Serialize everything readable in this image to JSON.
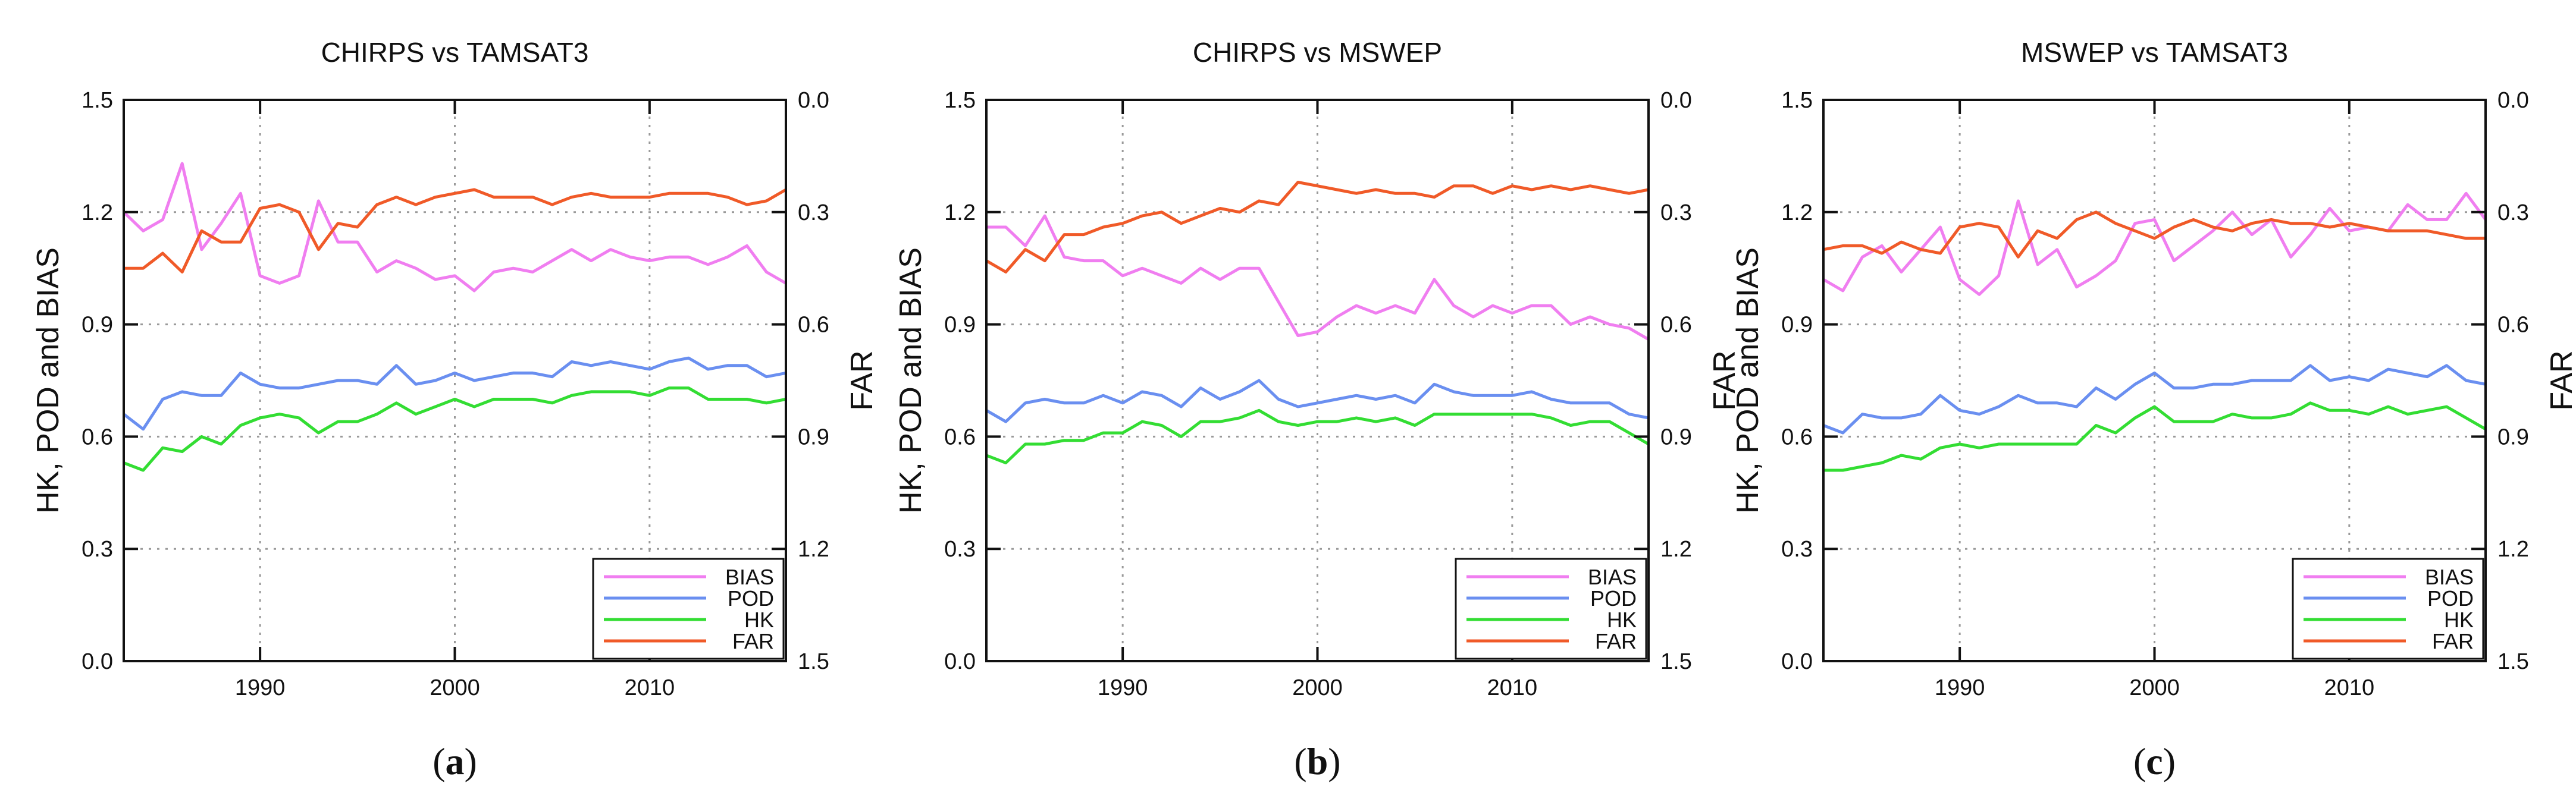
{
  "chart_data": [
    {
      "type": "line",
      "panel_label": "a",
      "title": "CHIRPS vs TAMSAT3",
      "ylabel": "HK, POD and BIAS",
      "y2label": "FAR",
      "xlim": [
        1983,
        2017
      ],
      "ylim": [
        0.0,
        1.5
      ],
      "y2lim": [
        1.5,
        0.0
      ],
      "xticks": [
        "1990",
        "2000",
        "2010"
      ],
      "yticks": [
        "0.0",
        "0.3",
        "0.6",
        "0.9",
        "1.2",
        "1.5"
      ],
      "y2ticks": [
        "1.5",
        "1.2",
        "0.9",
        "0.6",
        "0.3",
        "0.0"
      ],
      "x": [
        1983,
        1984,
        1985,
        1986,
        1987,
        1988,
        1989,
        1990,
        1991,
        1992,
        1993,
        1994,
        1995,
        1996,
        1997,
        1998,
        1999,
        2000,
        2001,
        2002,
        2003,
        2004,
        2005,
        2006,
        2007,
        2008,
        2009,
        2010,
        2011,
        2012,
        2013,
        2014,
        2015,
        2016,
        2017
      ],
      "series": [
        {
          "name": "BIAS",
          "axis": "left",
          "color": "#f07ef0",
          "values": [
            1.2,
            1.15,
            1.18,
            1.33,
            1.1,
            1.17,
            1.25,
            1.03,
            1.01,
            1.03,
            1.23,
            1.12,
            1.12,
            1.04,
            1.07,
            1.05,
            1.02,
            1.03,
            0.99,
            1.04,
            1.05,
            1.04,
            1.07,
            1.1,
            1.07,
            1.1,
            1.08,
            1.07,
            1.08,
            1.08,
            1.06,
            1.08,
            1.11,
            1.04,
            1.01
          ]
        },
        {
          "name": "POD",
          "axis": "left",
          "color": "#6a8ff0",
          "values": [
            0.66,
            0.62,
            0.7,
            0.72,
            0.71,
            0.71,
            0.77,
            0.74,
            0.73,
            0.73,
            0.74,
            0.75,
            0.75,
            0.74,
            0.79,
            0.74,
            0.75,
            0.77,
            0.75,
            0.76,
            0.77,
            0.77,
            0.76,
            0.8,
            0.79,
            0.8,
            0.79,
            0.78,
            0.8,
            0.81,
            0.78,
            0.79,
            0.79,
            0.76,
            0.77
          ]
        },
        {
          "name": "HK",
          "axis": "left",
          "color": "#33dd33",
          "values": [
            0.53,
            0.51,
            0.57,
            0.56,
            0.6,
            0.58,
            0.63,
            0.65,
            0.66,
            0.65,
            0.61,
            0.64,
            0.64,
            0.66,
            0.69,
            0.66,
            0.68,
            0.7,
            0.68,
            0.7,
            0.7,
            0.7,
            0.69,
            0.71,
            0.72,
            0.72,
            0.72,
            0.71,
            0.73,
            0.73,
            0.7,
            0.7,
            0.7,
            0.69,
            0.7
          ]
        },
        {
          "name": "FAR",
          "axis": "right",
          "color": "#f05a28",
          "values": [
            0.45,
            0.45,
            0.41,
            0.46,
            0.35,
            0.38,
            0.38,
            0.29,
            0.28,
            0.3,
            0.4,
            0.33,
            0.34,
            0.28,
            0.26,
            0.28,
            0.26,
            0.25,
            0.24,
            0.26,
            0.26,
            0.26,
            0.28,
            0.26,
            0.25,
            0.26,
            0.26,
            0.26,
            0.25,
            0.25,
            0.25,
            0.26,
            0.28,
            0.27,
            0.24
          ]
        }
      ],
      "legend": {
        "placement": "bottom-right",
        "entries": [
          "BIAS",
          "POD",
          "HK",
          "FAR"
        ]
      }
    },
    {
      "type": "line",
      "panel_label": "b",
      "title": "CHIRPS vs MSWEP",
      "ylabel": "HK, POD and BIAS",
      "y2label": "FAR",
      "xlim": [
        1983,
        2017
      ],
      "ylim": [
        0.0,
        1.5
      ],
      "y2lim": [
        1.5,
        0.0
      ],
      "xticks": [
        "1990",
        "2000",
        "2010"
      ],
      "yticks": [
        "0.0",
        "0.3",
        "0.6",
        "0.9",
        "1.2",
        "1.5"
      ],
      "y2ticks": [
        "1.5",
        "1.2",
        "0.9",
        "0.6",
        "0.3",
        "0.0"
      ],
      "x": [
        1983,
        1984,
        1985,
        1986,
        1987,
        1988,
        1989,
        1990,
        1991,
        1992,
        1993,
        1994,
        1995,
        1996,
        1997,
        1998,
        1999,
        2000,
        2001,
        2002,
        2003,
        2004,
        2005,
        2006,
        2007,
        2008,
        2009,
        2010,
        2011,
        2012,
        2013,
        2014,
        2015,
        2016,
        2017
      ],
      "series": [
        {
          "name": "BIAS",
          "axis": "left",
          "color": "#f07ef0",
          "values": [
            1.16,
            1.16,
            1.11,
            1.19,
            1.08,
            1.07,
            1.07,
            1.03,
            1.05,
            1.03,
            1.01,
            1.05,
            1.02,
            1.05,
            1.05,
            0.96,
            0.87,
            0.88,
            0.92,
            0.95,
            0.93,
            0.95,
            0.93,
            1.02,
            0.95,
            0.92,
            0.95,
            0.93,
            0.95,
            0.95,
            0.9,
            0.92,
            0.9,
            0.89,
            0.86
          ]
        },
        {
          "name": "POD",
          "axis": "left",
          "color": "#6a8ff0",
          "values": [
            0.67,
            0.64,
            0.69,
            0.7,
            0.69,
            0.69,
            0.71,
            0.69,
            0.72,
            0.71,
            0.68,
            0.73,
            0.7,
            0.72,
            0.75,
            0.7,
            0.68,
            0.69,
            0.7,
            0.71,
            0.7,
            0.71,
            0.69,
            0.74,
            0.72,
            0.71,
            0.71,
            0.71,
            0.72,
            0.7,
            0.69,
            0.69,
            0.69,
            0.66,
            0.65
          ]
        },
        {
          "name": "HK",
          "axis": "left",
          "color": "#33dd33",
          "values": [
            0.55,
            0.53,
            0.58,
            0.58,
            0.59,
            0.59,
            0.61,
            0.61,
            0.64,
            0.63,
            0.6,
            0.64,
            0.64,
            0.65,
            0.67,
            0.64,
            0.63,
            0.64,
            0.64,
            0.65,
            0.64,
            0.65,
            0.63,
            0.66,
            0.66,
            0.66,
            0.66,
            0.66,
            0.66,
            0.65,
            0.63,
            0.64,
            0.64,
            0.61,
            0.58
          ]
        },
        {
          "name": "FAR",
          "axis": "right",
          "color": "#f05a28",
          "values": [
            0.43,
            0.46,
            0.4,
            0.43,
            0.36,
            0.36,
            0.34,
            0.33,
            0.31,
            0.3,
            0.33,
            0.31,
            0.29,
            0.3,
            0.27,
            0.28,
            0.22,
            0.23,
            0.24,
            0.25,
            0.24,
            0.25,
            0.25,
            0.26,
            0.23,
            0.23,
            0.25,
            0.23,
            0.24,
            0.23,
            0.24,
            0.23,
            0.24,
            0.25,
            0.24
          ]
        }
      ],
      "legend": {
        "placement": "bottom-right",
        "entries": [
          "BIAS",
          "POD",
          "HK",
          "FAR"
        ]
      }
    },
    {
      "type": "line",
      "panel_label": "c",
      "title": "MSWEP vs TAMSAT3",
      "ylabel": "HK, POD and BIAS",
      "y2label": "FAR",
      "xlim": [
        1983,
        2017
      ],
      "ylim": [
        0.0,
        1.5
      ],
      "y2lim": [
        1.5,
        0.0
      ],
      "xticks": [
        "1990",
        "2000",
        "2010"
      ],
      "yticks": [
        "0.0",
        "0.3",
        "0.6",
        "0.9",
        "1.2",
        "1.5"
      ],
      "y2ticks": [
        "1.5",
        "1.2",
        "0.9",
        "0.6",
        "0.3",
        "0.0"
      ],
      "x": [
        1983,
        1984,
        1985,
        1986,
        1987,
        1988,
        1989,
        1990,
        1991,
        1992,
        1993,
        1994,
        1995,
        1996,
        1997,
        1998,
        1999,
        2000,
        2001,
        2002,
        2003,
        2004,
        2005,
        2006,
        2007,
        2008,
        2009,
        2010,
        2011,
        2012,
        2013,
        2014,
        2015,
        2016,
        2017
      ],
      "series": [
        {
          "name": "BIAS",
          "axis": "left",
          "color": "#f07ef0",
          "values": [
            1.02,
            0.99,
            1.08,
            1.11,
            1.04,
            1.1,
            1.16,
            1.02,
            0.98,
            1.03,
            1.23,
            1.06,
            1.1,
            1.0,
            1.03,
            1.07,
            1.17,
            1.18,
            1.07,
            1.11,
            1.15,
            1.2,
            1.14,
            1.18,
            1.08,
            1.14,
            1.21,
            1.15,
            1.16,
            1.15,
            1.22,
            1.18,
            1.18,
            1.25,
            1.18
          ]
        },
        {
          "name": "POD",
          "axis": "left",
          "color": "#6a8ff0",
          "values": [
            0.63,
            0.61,
            0.66,
            0.65,
            0.65,
            0.66,
            0.71,
            0.67,
            0.66,
            0.68,
            0.71,
            0.69,
            0.69,
            0.68,
            0.73,
            0.7,
            0.74,
            0.77,
            0.73,
            0.73,
            0.74,
            0.74,
            0.75,
            0.75,
            0.75,
            0.79,
            0.75,
            0.76,
            0.75,
            0.78,
            0.77,
            0.76,
            0.79,
            0.75,
            0.74
          ]
        },
        {
          "name": "HK",
          "axis": "left",
          "color": "#33dd33",
          "values": [
            0.51,
            0.51,
            0.52,
            0.53,
            0.55,
            0.54,
            0.57,
            0.58,
            0.57,
            0.58,
            0.58,
            0.58,
            0.58,
            0.58,
            0.63,
            0.61,
            0.65,
            0.68,
            0.64,
            0.64,
            0.64,
            0.66,
            0.65,
            0.65,
            0.66,
            0.69,
            0.67,
            0.67,
            0.66,
            0.68,
            0.66,
            0.67,
            0.68,
            0.65,
            0.62
          ]
        },
        {
          "name": "FAR",
          "axis": "right",
          "color": "#f05a28",
          "values": [
            0.4,
            0.39,
            0.39,
            0.41,
            0.38,
            0.4,
            0.41,
            0.34,
            0.33,
            0.34,
            0.42,
            0.35,
            0.37,
            0.32,
            0.3,
            0.33,
            0.35,
            0.37,
            0.34,
            0.32,
            0.34,
            0.35,
            0.33,
            0.32,
            0.33,
            0.33,
            0.34,
            0.33,
            0.34,
            0.35,
            0.35,
            0.35,
            0.36,
            0.37,
            0.37
          ]
        }
      ],
      "legend": {
        "placement": "bottom-right",
        "entries": [
          "BIAS",
          "POD",
          "HK",
          "FAR"
        ]
      }
    }
  ]
}
